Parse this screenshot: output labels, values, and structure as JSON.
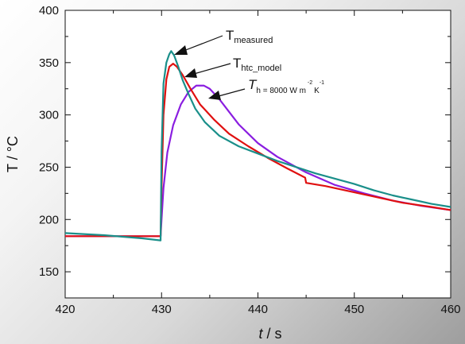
{
  "chart_data": {
    "type": "line",
    "title": "",
    "xlabel": "t",
    "xlabel_unit": " / s",
    "ylabel": "T / °C",
    "xlim": [
      420,
      460
    ],
    "ylim": [
      125,
      400
    ],
    "xticks": [
      420,
      430,
      440,
      450,
      460
    ],
    "yticks": [
      150,
      200,
      250,
      300,
      350,
      400
    ],
    "grid": false,
    "colors": {
      "measured": "#1a8f8a",
      "htc_model": "#e01010",
      "h8000": "#8a1ee0"
    },
    "series": [
      {
        "name": "T measured",
        "x": [
          420,
          424,
          428,
          429.9,
          430.0,
          430.2,
          430.5,
          430.8,
          431.0,
          431.3,
          431.7,
          432.2,
          432.8,
          433.5,
          434.5,
          436,
          438,
          440,
          442,
          444,
          445,
          446,
          448,
          450,
          452,
          454,
          456,
          458,
          460
        ],
        "y": [
          187,
          185,
          182,
          180,
          265,
          330,
          350,
          358,
          361,
          357,
          347,
          333,
          320,
          306,
          293,
          280,
          270,
          263,
          256,
          250,
          247,
          244,
          239,
          234,
          228,
          223,
          219,
          215,
          212
        ]
      },
      {
        "name": "T htc_model",
        "x": [
          420,
          425,
          429.9,
          430.0,
          430.2,
          430.5,
          430.8,
          431.2,
          431.6,
          432.2,
          433,
          434,
          435.5,
          437,
          439,
          441,
          443,
          444.9,
          445,
          447,
          449,
          452,
          455,
          458,
          460
        ],
        "y": [
          184,
          184,
          184,
          230,
          300,
          334,
          346,
          349,
          346,
          338,
          325,
          310,
          295,
          282,
          270,
          259,
          249,
          240,
          235,
          232,
          228,
          222,
          216,
          212,
          209
        ]
      },
      {
        "name": "T h = 8000 W m-2 K-1",
        "x": [
          420,
          425,
          429.9,
          430.0,
          430.2,
          430.6,
          431.2,
          432,
          432.8,
          433.6,
          434.4,
          435,
          436,
          437,
          438,
          440,
          442,
          445,
          448,
          451,
          454,
          457,
          460
        ],
        "y": [
          184,
          184,
          184,
          200,
          230,
          264,
          290,
          310,
          322,
          328,
          328,
          325,
          315,
          303,
          291,
          273,
          260,
          245,
          233,
          225,
          218,
          213,
          209
        ]
      }
    ],
    "annotations": {
      "measured": {
        "main": "T",
        "sub": "measured"
      },
      "htc_model": {
        "main": "T",
        "sub": "htc_model"
      },
      "h8000": {
        "main": "T",
        "sub": "h = 8000 W m",
        "sup1": "-2",
        "sup2": "-1",
        "tail": "K"
      }
    }
  }
}
